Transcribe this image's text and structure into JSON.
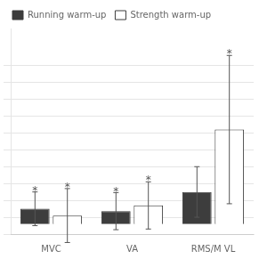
{
  "chart_data": {
    "type": "bar",
    "categories": [
      "MVC",
      "VA",
      "RMS/M VL"
    ],
    "series": [
      {
        "name": "Running warm-up",
        "color": "#3d3d3d",
        "values": [
          4.5,
          3.8,
          9.5
        ],
        "errors": [
          5.0,
          5.5,
          7.5
        ]
      },
      {
        "name": "Strength warm-up",
        "color": "#ffffff",
        "values": [
          2.5,
          5.5,
          28.0
        ],
        "errors": [
          8.0,
          7.0,
          22.0
        ]
      }
    ],
    "edge_color": "#3d3d3d",
    "error_color": "#555555",
    "annotations": [
      {
        "text": "*",
        "category": "MVC",
        "series": "Running warm-up"
      },
      {
        "text": "*",
        "category": "VA",
        "series": "Running warm-up"
      },
      {
        "text": "*",
        "category": "MVC",
        "series": "Strength warm-up"
      },
      {
        "text": "*",
        "category": "VA",
        "series": "Strength warm-up"
      },
      {
        "text": "*",
        "category": "RMS/M VL",
        "series": "Strength warm-up"
      }
    ],
    "ylim": [
      -3,
      58
    ],
    "yticks": [
      -3,
      2,
      7,
      12,
      17,
      22,
      27,
      32,
      37,
      42,
      47
    ],
    "grid": true,
    "tick_labels": "x",
    "legend": "upper left"
  }
}
